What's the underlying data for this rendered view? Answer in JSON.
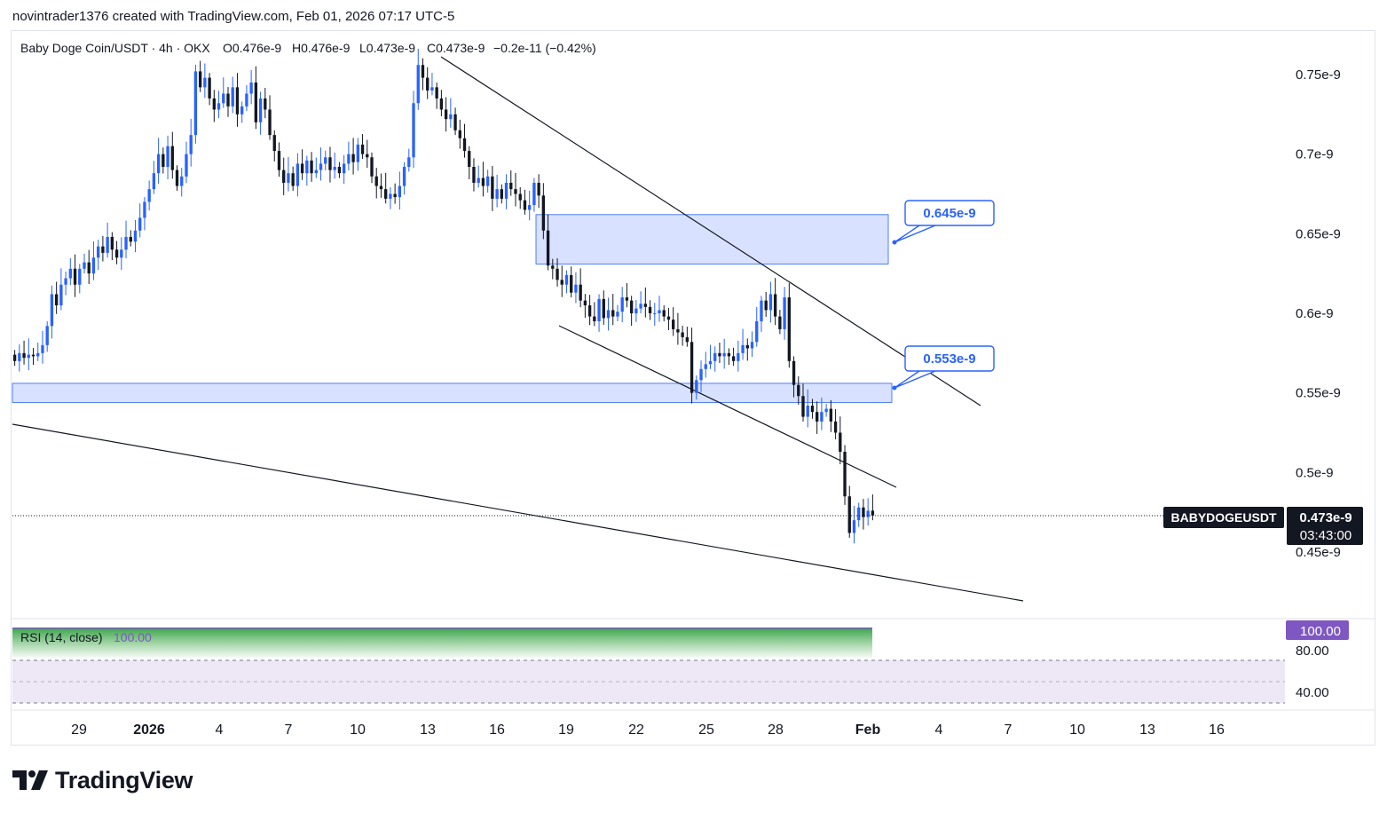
{
  "header": {
    "credit": "novintrader1376 created with TradingView.com, Feb 01, 2026 07:17 UTC-5"
  },
  "legend": {
    "symbol": "Baby Doge Coin/USDT · 4h · OKX",
    "open": "O0.476e-9",
    "high": "H0.476e-9",
    "low": "L0.473e-9",
    "close": "C0.473e-9",
    "change": "−0.2e-11 (−0.42%)"
  },
  "price_axis": {
    "ticks": [
      {
        "label": "0.75e-9",
        "value": 0.75
      },
      {
        "label": "0.7e-9",
        "value": 0.7
      },
      {
        "label": "0.65e-9",
        "value": 0.65
      },
      {
        "label": "0.6e-9",
        "value": 0.6
      },
      {
        "label": "0.55e-9",
        "value": 0.55
      },
      {
        "label": "0.5e-9",
        "value": 0.5
      },
      {
        "label": "0.45e-9",
        "value": 0.45
      }
    ],
    "last_price_label": "0.473e-9",
    "countdown": "03:43:00",
    "ticker_badge": "BABYDOGEUSDT"
  },
  "time_axis": {
    "ticks": [
      "29",
      "2026",
      "4",
      "7",
      "10",
      "13",
      "16",
      "19",
      "22",
      "25",
      "28",
      "Feb",
      "4",
      "7",
      "10",
      "13",
      "16"
    ],
    "bold": [
      "2026",
      "Feb"
    ]
  },
  "annotations": [
    {
      "label": "0.645e-9",
      "zone_low": 0.631,
      "zone_high": 0.662
    },
    {
      "label": "0.553e-9",
      "zone_low": 0.544,
      "zone_high": 0.556
    }
  ],
  "rsi": {
    "title": "RSI (14, close)",
    "value_label": "100.00",
    "axis_labels": [
      "80.00",
      "40.00"
    ],
    "badge": "100.00"
  },
  "colors": {
    "up": "#2962ff",
    "down": "#131722",
    "zone_fill": "#d1dcff",
    "zone_border": "#2962ff",
    "rsi_badge": "#7e57c2",
    "rsi_band": "#ede7f6"
  },
  "footer": {
    "brand": "TradingView"
  },
  "chart_data": {
    "type": "candlestick",
    "title": "Baby Doge Coin/USDT · 4h · OKX",
    "unit": "e-9",
    "ylim": [
      0.42,
      0.78
    ],
    "closes": [
      0.57,
      0.575,
      0.572,
      0.574,
      0.573,
      0.575,
      0.58,
      0.592,
      0.612,
      0.605,
      0.618,
      0.622,
      0.628,
      0.618,
      0.628,
      0.632,
      0.625,
      0.635,
      0.642,
      0.638,
      0.648,
      0.64,
      0.635,
      0.64,
      0.648,
      0.645,
      0.652,
      0.66,
      0.67,
      0.678,
      0.688,
      0.7,
      0.692,
      0.705,
      0.69,
      0.68,
      0.686,
      0.7,
      0.712,
      0.752,
      0.742,
      0.748,
      0.735,
      0.728,
      0.732,
      0.738,
      0.73,
      0.742,
      0.725,
      0.73,
      0.738,
      0.745,
      0.72,
      0.735,
      0.728,
      0.712,
      0.702,
      0.69,
      0.682,
      0.688,
      0.68,
      0.694,
      0.688,
      0.696,
      0.688,
      0.69,
      0.694,
      0.698,
      0.69,
      0.692,
      0.688,
      0.694,
      0.7,
      0.695,
      0.706,
      0.7,
      0.698,
      0.686,
      0.68,
      0.678,
      0.672,
      0.675,
      0.673,
      0.68,
      0.692,
      0.698,
      0.732,
      0.756,
      0.748,
      0.74,
      0.742,
      0.735,
      0.728,
      0.722,
      0.725,
      0.715,
      0.71,
      0.702,
      0.692,
      0.682,
      0.685,
      0.68,
      0.686,
      0.672,
      0.678,
      0.672,
      0.682,
      0.678,
      0.675,
      0.671,
      0.665,
      0.668,
      0.682,
      0.674,
      0.652,
      0.63,
      0.628,
      0.621,
      0.618,
      0.624,
      0.613,
      0.618,
      0.608,
      0.605,
      0.598,
      0.595,
      0.609,
      0.597,
      0.602,
      0.598,
      0.601,
      0.61,
      0.608,
      0.6,
      0.603,
      0.606,
      0.604,
      0.6,
      0.6,
      0.602,
      0.598,
      0.596,
      0.59,
      0.588,
      0.585,
      0.582,
      0.55,
      0.558,
      0.565,
      0.568,
      0.57,
      0.575,
      0.573,
      0.575,
      0.573,
      0.57,
      0.575,
      0.58,
      0.578,
      0.582,
      0.595,
      0.608,
      0.602,
      0.612,
      0.598,
      0.59,
      0.61,
      0.57,
      0.555,
      0.548,
      0.535,
      0.542,
      0.538,
      0.532,
      0.538,
      0.54,
      0.532,
      0.525,
      0.513,
      0.485,
      0.462,
      0.47,
      0.478,
      0.472,
      0.476,
      0.473
    ]
  }
}
